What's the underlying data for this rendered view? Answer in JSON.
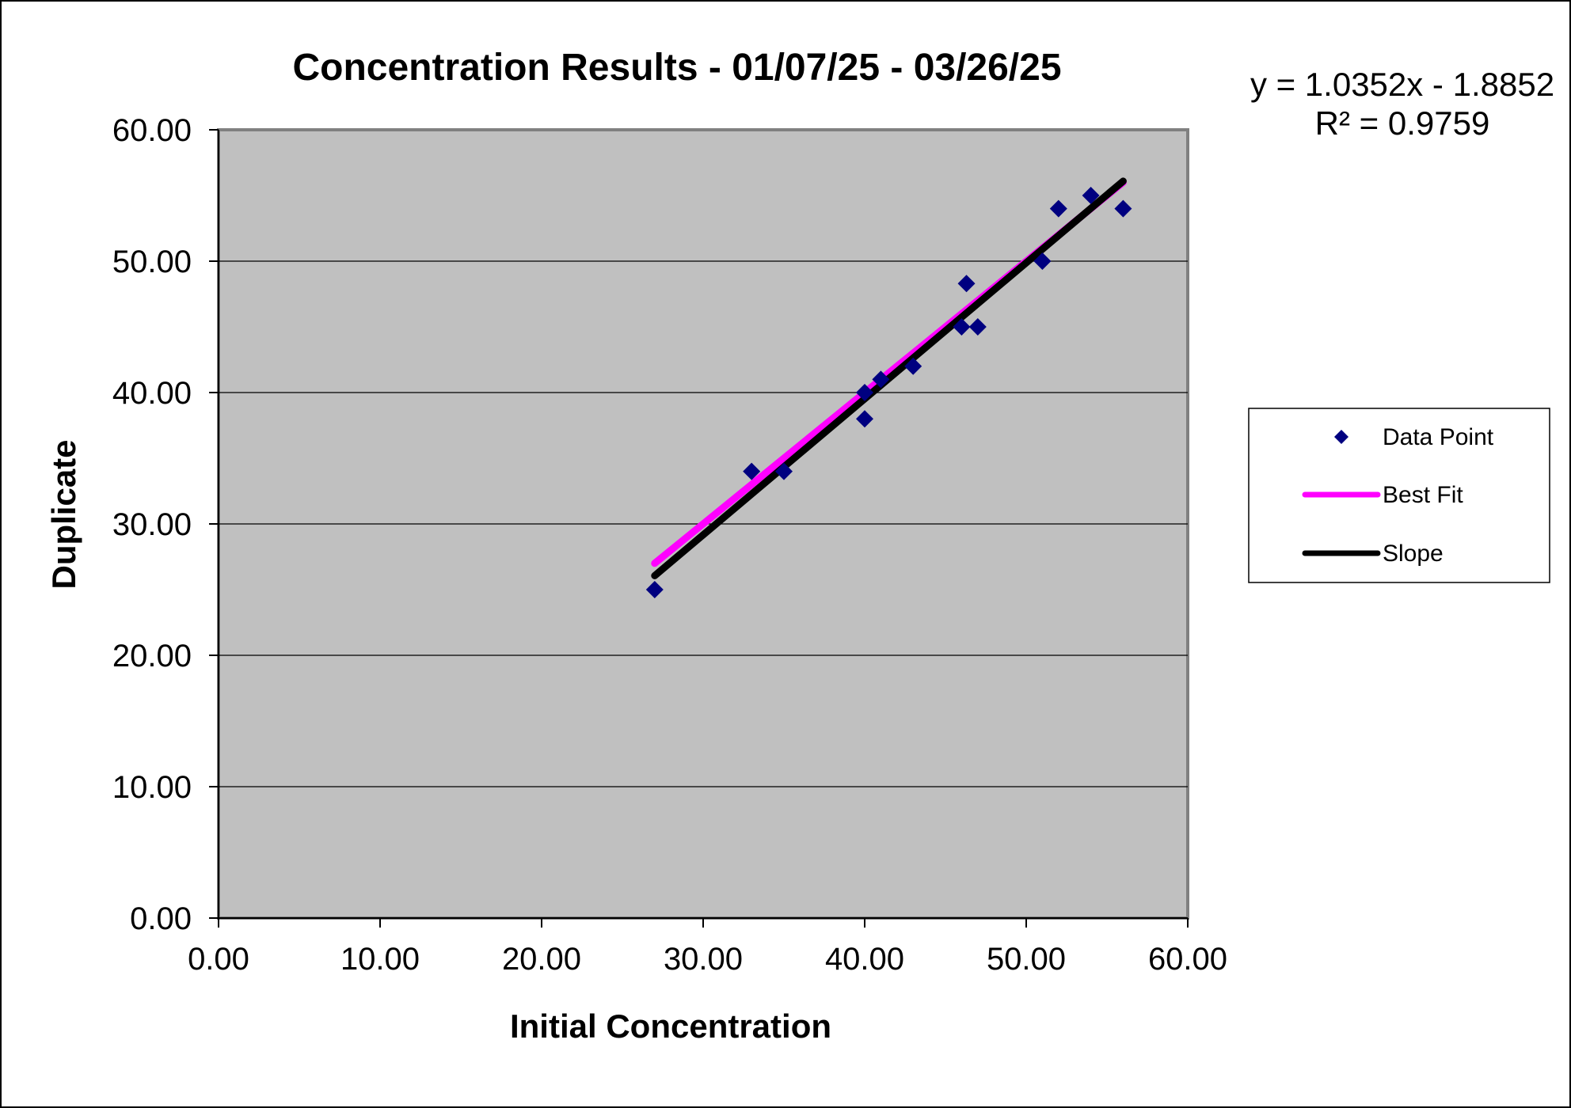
{
  "chart_data": {
    "type": "scatter",
    "title": "Concentration Results - 01/07/25 - 03/26/25",
    "xlabel": "Initial Concentration",
    "ylabel": "Duplicate",
    "xlim": [
      0,
      60
    ],
    "ylim": [
      0,
      60
    ],
    "x_ticks": [
      "0.00",
      "10.00",
      "20.00",
      "30.00",
      "40.00",
      "50.00",
      "60.00"
    ],
    "y_ticks": [
      "0.00",
      "10.00",
      "20.00",
      "30.00",
      "40.00",
      "50.00",
      "60.00"
    ],
    "grid": "horizontal",
    "legend_position": "right",
    "trendline_equation": "y = 1.0352x - 1.8852",
    "r_squared": "R² = 0.9759",
    "series": [
      {
        "name": "Data Point",
        "kind": "points",
        "color": "#000080",
        "x": [
          27,
          33,
          35,
          40,
          40,
          41,
          43,
          46,
          46.3,
          47,
          51,
          52,
          54,
          56
        ],
        "y": [
          25,
          34,
          34,
          38,
          40,
          41,
          42,
          45,
          48.3,
          45,
          50,
          54,
          55,
          54
        ]
      },
      {
        "name": "Best Fit",
        "kind": "line",
        "color": "#ff00ff",
        "x": [
          27,
          56
        ],
        "y": [
          27,
          56
        ]
      },
      {
        "name": "Slope",
        "kind": "line",
        "color": "#000000",
        "x": [
          27,
          56
        ],
        "y": [
          26.06,
          56.09
        ]
      }
    ]
  }
}
